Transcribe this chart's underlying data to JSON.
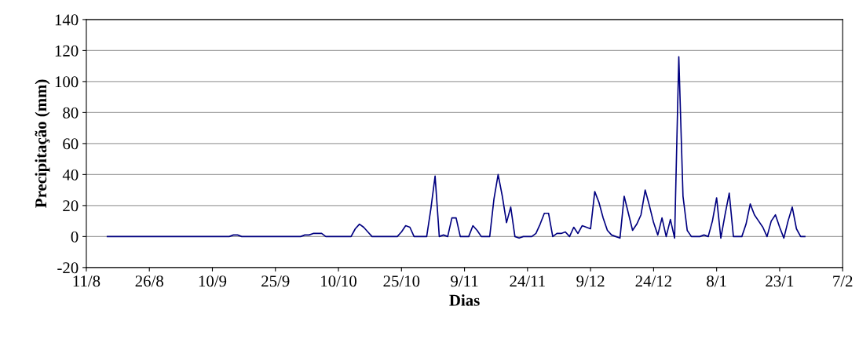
{
  "chart_data": {
    "type": "line",
    "xlabel": "Dias",
    "ylabel": "Precipitação (mm)",
    "categories": [
      "11/8",
      null,
      null,
      null,
      null,
      null,
      null,
      null,
      null,
      null,
      null,
      null,
      null,
      null,
      null,
      "26/8",
      null,
      null,
      null,
      null,
      null,
      null,
      null,
      null,
      null,
      null,
      null,
      null,
      null,
      null,
      "10/9",
      null,
      null,
      null,
      null,
      null,
      null,
      null,
      null,
      null,
      null,
      null,
      null,
      null,
      null,
      "25/9",
      null,
      null,
      null,
      null,
      null,
      null,
      null,
      null,
      null,
      null,
      null,
      null,
      null,
      null,
      "10/10",
      null,
      null,
      null,
      null,
      null,
      null,
      null,
      null,
      null,
      null,
      null,
      null,
      null,
      null,
      "25/10",
      null,
      null,
      null,
      null,
      null,
      null,
      null,
      null,
      null,
      null,
      null,
      null,
      null,
      null,
      "9/11",
      null,
      null,
      null,
      null,
      null,
      null,
      null,
      null,
      null,
      null,
      null,
      null,
      null,
      null,
      "24/11",
      null,
      null,
      null,
      null,
      null,
      null,
      null,
      null,
      null,
      null,
      null,
      null,
      null,
      null,
      "9/12",
      null,
      null,
      null,
      null,
      null,
      null,
      null,
      null,
      null,
      null,
      null,
      null,
      null,
      null,
      "24/12",
      null,
      null,
      null,
      null,
      null,
      null,
      null,
      null,
      null,
      null,
      null,
      null,
      null,
      null,
      "8/1",
      null,
      null,
      null,
      null,
      null,
      null,
      null,
      null,
      null,
      null,
      null,
      null,
      null,
      null,
      "23/1",
      null,
      null,
      null,
      null,
      null,
      null,
      null,
      null,
      null,
      null,
      null,
      null,
      null,
      null,
      "7/2"
    ],
    "series": [
      {
        "color": "#000080",
        "values": [
          null,
          null,
          null,
          null,
          null,
          0,
          0,
          0,
          0,
          0,
          0,
          0,
          0,
          0,
          0,
          0,
          0,
          0,
          0,
          0,
          0,
          0,
          0,
          0,
          0,
          0,
          0,
          0,
          0,
          0,
          0,
          0,
          0,
          0,
          0,
          1,
          1,
          0,
          0,
          0,
          0,
          0,
          0,
          0,
          0,
          0,
          0,
          0,
          0,
          0,
          0,
          0,
          1,
          1,
          2,
          2,
          2,
          0,
          0,
          0,
          0,
          0,
          0,
          0,
          5,
          8,
          6,
          3,
          0,
          0,
          0,
          0,
          0,
          0,
          0,
          3,
          7,
          6,
          0,
          0,
          0,
          0,
          18,
          39,
          0,
          1,
          0,
          12,
          12,
          0,
          0,
          0,
          7,
          4,
          0,
          0,
          0,
          24,
          40,
          26,
          9,
          19,
          0,
          -1,
          0,
          0,
          0,
          2,
          8,
          15,
          15,
          0,
          2,
          2,
          3,
          0,
          6,
          2,
          7,
          6,
          5,
          29,
          22,
          12,
          4,
          1,
          0,
          -1,
          26,
          15,
          4,
          8,
          14,
          30,
          20,
          9,
          1,
          12,
          0,
          11,
          -1,
          116,
          26,
          4,
          0,
          0,
          0,
          1,
          0,
          10,
          25,
          -1,
          14,
          28,
          0,
          0,
          0,
          8,
          21,
          14,
          10,
          6,
          0,
          10,
          14,
          6,
          -1,
          10,
          19,
          5,
          0,
          0,
          null,
          null,
          null,
          null,
          null,
          null,
          null,
          null,
          null
        ]
      }
    ],
    "ylim": [
      -20,
      140
    ],
    "yticks": [
      -20,
      0,
      20,
      40,
      60,
      80,
      100,
      120,
      140
    ],
    "grid": "y",
    "marker": "none",
    "line_style": "solid"
  }
}
